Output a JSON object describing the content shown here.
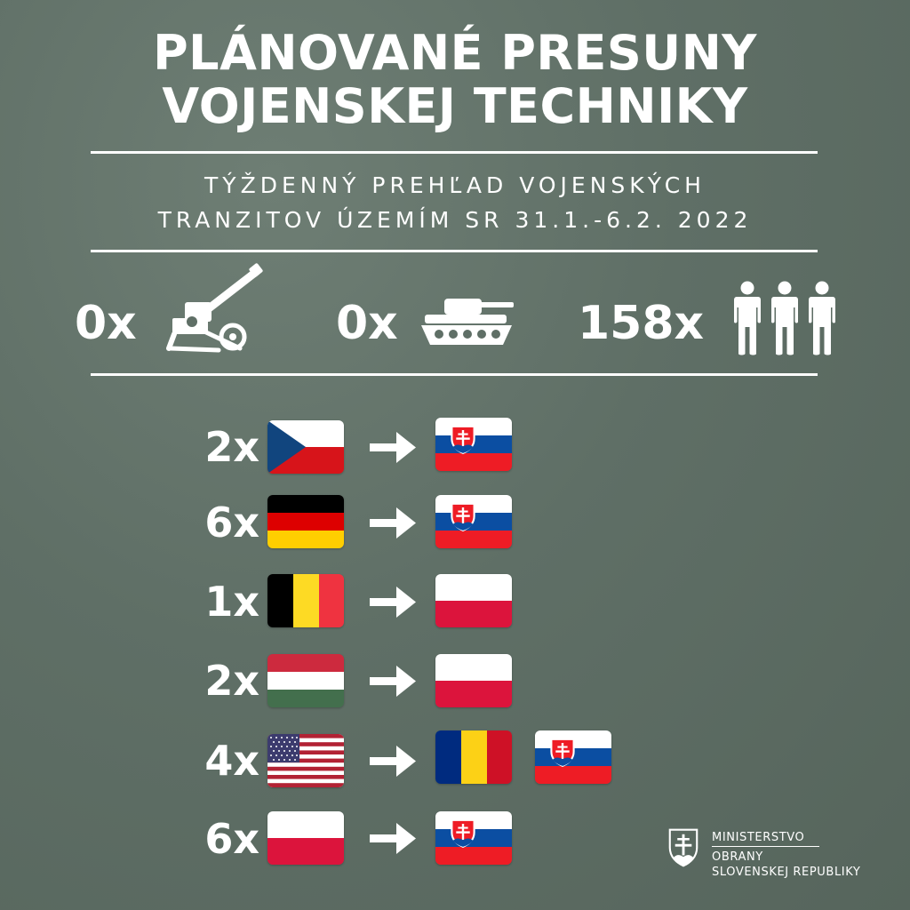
{
  "header": {
    "title_line1": "PLÁNOVANÉ PRESUNY",
    "title_line2": "VOJENSKEJ TECHNIKY",
    "subtitle_line1": "TÝŽDENNÝ PREHĽAD VOJENSKÝCH",
    "subtitle_line2": "TRANZITOV ÚZEMÍM SR 31.1.-6.2. 2022"
  },
  "stats": {
    "artillery": {
      "label": "0x",
      "icon": "artillery-icon"
    },
    "tanks": {
      "label": "0x",
      "icon": "tank-icon"
    },
    "personnel": {
      "label": "158x",
      "icon": "people-icon"
    }
  },
  "transits": [
    {
      "count": "2x",
      "from": "czech-flag",
      "to": [
        "slovak-flag"
      ]
    },
    {
      "count": "6x",
      "from": "german-flag",
      "to": [
        "slovak-flag"
      ]
    },
    {
      "count": "1x",
      "from": "belgian-flag",
      "to": [
        "polish-flag"
      ]
    },
    {
      "count": "2x",
      "from": "hungarian-flag",
      "to": [
        "polish-flag"
      ]
    },
    {
      "count": "4x",
      "from": "us-flag",
      "to": [
        "romanian-flag",
        "slovak-flag"
      ]
    },
    {
      "count": "6x",
      "from": "polish-flag",
      "to": [
        "slovak-flag"
      ]
    }
  ],
  "logo": {
    "line1": "MINISTERSTVO",
    "line2": "OBRANY",
    "line3": "SLOVENSKEJ REPUBLIKY"
  },
  "colors": {
    "background": "#5f6f66",
    "text": "#ffffff",
    "slovak_blue": "#0b4ea2",
    "slovak_red": "#ee1c25",
    "czech_blue": "#11457e",
    "czech_red": "#d7141a",
    "german_black": "#000000",
    "german_red": "#dd0000",
    "german_gold": "#ffce00",
    "belgian_yellow": "#fdda24",
    "belgian_red": "#ef3340",
    "hungarian_red": "#cd2a3e",
    "hungarian_green": "#436f4d",
    "polish_red": "#dc143c",
    "romanian_blue": "#002b7f",
    "romanian_yellow": "#fcd116",
    "romanian_red": "#ce1126",
    "us_red": "#b22234",
    "us_blue": "#3c3b6e"
  }
}
